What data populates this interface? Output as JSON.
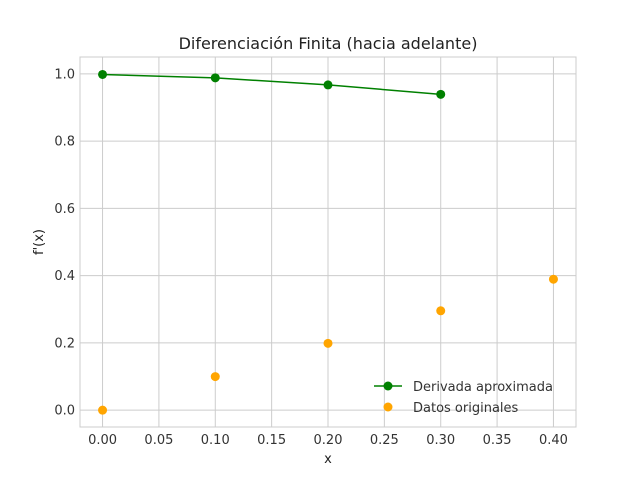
{
  "chart_data": {
    "type": "line",
    "title": "Diferenciación Finita (hacia adelante)",
    "xlabel": "x",
    "ylabel": "f'(x)",
    "xlim": [
      -0.02,
      0.42
    ],
    "ylim": [
      -0.05,
      1.05
    ],
    "xticks": [
      0.0,
      0.05,
      0.1,
      0.15,
      0.2,
      0.25,
      0.3,
      0.35,
      0.4
    ],
    "xtick_labels": [
      "0.00",
      "0.05",
      "0.10",
      "0.15",
      "0.20",
      "0.25",
      "0.30",
      "0.35",
      "0.40"
    ],
    "yticks": [
      0.0,
      0.2,
      0.4,
      0.6,
      0.8,
      1.0
    ],
    "ytick_labels": [
      "0.0",
      "0.2",
      "0.4",
      "0.6",
      "0.8",
      "1.0"
    ],
    "grid": true,
    "legend_position": "lower-right",
    "series": [
      {
        "name": "Derivada aproximada",
        "kind": "line-with-markers",
        "color": "#008000",
        "x": [
          0.0,
          0.1,
          0.2,
          0.3
        ],
        "y": [
          0.998,
          0.988,
          0.967,
          0.939
        ]
      },
      {
        "name": "Datos originales",
        "kind": "scatter",
        "color": "#ffa500",
        "x": [
          0.0,
          0.1,
          0.2,
          0.3,
          0.4
        ],
        "y": [
          0.0,
          0.0998,
          0.1987,
          0.2955,
          0.3894
        ]
      }
    ]
  }
}
